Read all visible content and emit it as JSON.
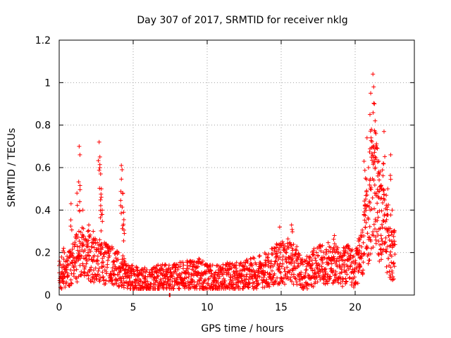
{
  "chart_data": {
    "type": "scatter",
    "title": "Day 307 of 2017, SRMTID for receiver nklg",
    "xlabel": "GPS time / hours",
    "ylabel": "SRMTID / TECUs",
    "xlim": [
      0,
      24
    ],
    "ylim": [
      0,
      1.2
    ],
    "grid": true,
    "marker": "+",
    "color": "#ff0000",
    "x_ticks": [
      0,
      5,
      10,
      15,
      20
    ],
    "x_tick_labels": [
      "0",
      "5",
      "10",
      "15",
      "20"
    ],
    "y_ticks": [
      0,
      0.2,
      0.4,
      0.6,
      0.8,
      1.0,
      1.2
    ],
    "y_tick_labels": [
      "0",
      "0.2",
      "0.4",
      "0.6",
      "0.8",
      "1",
      "1.2"
    ],
    "series": [
      {
        "name": "SRMTID",
        "baseline": [
          [
            0.0,
            0.1
          ],
          [
            0.5,
            0.12
          ],
          [
            1.0,
            0.16
          ],
          [
            1.5,
            0.2
          ],
          [
            2.0,
            0.18
          ],
          [
            2.5,
            0.16
          ],
          [
            3.0,
            0.15
          ],
          [
            3.5,
            0.14
          ],
          [
            4.0,
            0.12
          ],
          [
            4.5,
            0.1
          ],
          [
            5.0,
            0.08
          ],
          [
            5.5,
            0.07
          ],
          [
            6.0,
            0.07
          ],
          [
            6.5,
            0.08
          ],
          [
            7.0,
            0.08
          ],
          [
            7.5,
            0.08
          ],
          [
            8.0,
            0.09
          ],
          [
            8.5,
            0.09
          ],
          [
            9.0,
            0.1
          ],
          [
            9.5,
            0.1
          ],
          [
            10.0,
            0.08
          ],
          [
            10.5,
            0.08
          ],
          [
            11.0,
            0.08
          ],
          [
            11.5,
            0.09
          ],
          [
            12.0,
            0.09
          ],
          [
            12.5,
            0.09
          ],
          [
            13.0,
            0.1
          ],
          [
            13.5,
            0.11
          ],
          [
            14.0,
            0.12
          ],
          [
            14.5,
            0.14
          ],
          [
            15.0,
            0.15
          ],
          [
            15.5,
            0.16
          ],
          [
            16.0,
            0.14
          ],
          [
            16.5,
            0.1
          ],
          [
            17.0,
            0.12
          ],
          [
            17.5,
            0.14
          ],
          [
            18.0,
            0.15
          ],
          [
            18.5,
            0.14
          ],
          [
            19.0,
            0.13
          ],
          [
            19.5,
            0.14
          ],
          [
            20.0,
            0.12
          ],
          [
            20.5,
            0.2
          ],
          [
            21.0,
            0.4
          ],
          [
            21.3,
            0.5
          ],
          [
            21.6,
            0.4
          ],
          [
            22.0,
            0.3
          ],
          [
            22.4,
            0.2
          ],
          [
            22.7,
            0.18
          ]
        ],
        "peaks": [
          [
            0.3,
            0.22
          ],
          [
            0.8,
            0.43
          ],
          [
            1.2,
            0.48
          ],
          [
            1.35,
            0.7
          ],
          [
            1.4,
            0.66
          ],
          [
            1.6,
            0.4
          ],
          [
            2.0,
            0.33
          ],
          [
            2.3,
            0.3
          ],
          [
            2.7,
            0.72
          ],
          [
            2.75,
            0.65
          ],
          [
            2.8,
            0.57
          ],
          [
            2.85,
            0.5
          ],
          [
            2.9,
            0.4
          ],
          [
            4.2,
            0.61
          ],
          [
            4.25,
            0.59
          ],
          [
            4.3,
            0.48
          ],
          [
            4.35,
            0.39
          ],
          [
            4.4,
            0.29
          ],
          [
            7.45,
            0.0
          ],
          [
            15.7,
            0.33
          ],
          [
            14.9,
            0.32
          ],
          [
            18.6,
            0.28
          ],
          [
            20.3,
            0.26
          ],
          [
            20.6,
            0.63
          ],
          [
            20.7,
            0.55
          ],
          [
            20.8,
            0.74
          ],
          [
            20.9,
            0.6
          ],
          [
            21.0,
            0.85
          ],
          [
            21.05,
            0.95
          ],
          [
            21.1,
            0.78
          ],
          [
            21.2,
            1.04
          ],
          [
            21.25,
            0.98
          ],
          [
            21.3,
            0.9
          ],
          [
            21.35,
            0.82
          ],
          [
            21.4,
            0.76
          ],
          [
            21.5,
            0.69
          ],
          [
            21.6,
            0.63
          ],
          [
            21.7,
            0.58
          ],
          [
            21.8,
            0.5
          ],
          [
            21.9,
            0.62
          ],
          [
            21.95,
            0.77
          ],
          [
            22.1,
            0.47
          ],
          [
            22.2,
            0.5
          ],
          [
            22.4,
            0.66
          ],
          [
            22.5,
            0.4
          ],
          [
            22.6,
            0.3
          ]
        ]
      }
    ]
  }
}
